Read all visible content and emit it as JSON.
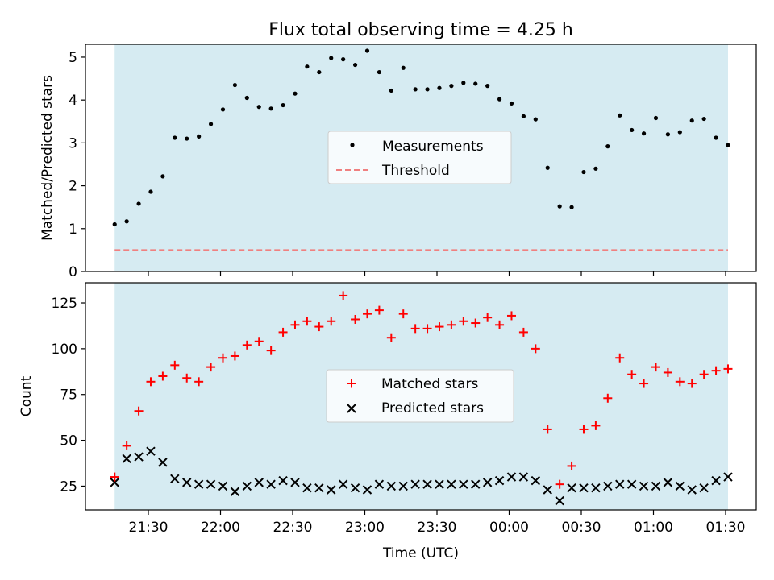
{
  "title": "Flux total observing time = 4.25 h",
  "xlabel": "Time (UTC)",
  "colors": {
    "band": "#add8e6",
    "measure": "#000000",
    "threshold": "#f08080",
    "matched": "#ff0000",
    "predicted": "#000000"
  },
  "chart_data": [
    {
      "type": "scatter",
      "ylabel": "Matched/Predicted stars",
      "ylim": [
        0,
        5.3
      ],
      "yticks": [
        0,
        1,
        2,
        3,
        4,
        5
      ],
      "threshold": 0.5,
      "legend": {
        "placement": "center",
        "entries": [
          "Measurements",
          "Threshold"
        ]
      },
      "series": [
        {
          "name": "Measurements",
          "x": [
            "21:16",
            "21:21",
            "21:26",
            "21:31",
            "21:36",
            "21:41",
            "21:46",
            "21:51",
            "21:56",
            "22:01",
            "22:06",
            "22:11",
            "22:16",
            "22:21",
            "22:26",
            "22:31",
            "22:36",
            "22:41",
            "22:46",
            "22:51",
            "22:56",
            "23:01",
            "23:06",
            "23:11",
            "23:16",
            "23:21",
            "23:26",
            "23:31",
            "23:36",
            "23:41",
            "23:46",
            "23:51",
            "23:56",
            "00:01",
            "00:06",
            "00:11",
            "00:16",
            "00:21",
            "00:26",
            "00:31",
            "00:36",
            "00:41",
            "00:46",
            "00:51",
            "00:56",
            "01:01",
            "01:06",
            "01:11",
            "01:16",
            "01:21",
            "01:26",
            "01:31"
          ],
          "values": [
            1.1,
            1.17,
            1.58,
            1.86,
            2.22,
            3.12,
            3.1,
            3.15,
            3.44,
            3.78,
            4.35,
            4.05,
            3.84,
            3.8,
            3.88,
            4.15,
            4.78,
            4.65,
            4.98,
            4.95,
            4.82,
            5.15,
            4.65,
            4.22,
            4.75,
            4.25,
            4.25,
            4.28,
            4.33,
            4.4,
            4.38,
            4.33,
            4.02,
            3.92,
            3.62,
            3.55,
            2.42,
            1.52,
            1.5,
            2.32,
            2.4,
            2.92,
            3.64,
            3.3,
            3.22,
            3.58,
            3.2,
            3.25,
            3.52,
            3.56,
            3.12,
            2.95
          ]
        },
        {
          "name": "Threshold",
          "values": [
            0.5
          ]
        }
      ]
    },
    {
      "type": "scatter",
      "ylabel": "Count",
      "ylim": [
        12,
        136
      ],
      "yticks": [
        25,
        50,
        75,
        100,
        125
      ],
      "legend": {
        "placement": "center",
        "entries": [
          "Matched stars",
          "Predicted stars"
        ]
      },
      "series": [
        {
          "name": "Matched stars",
          "x": [
            "21:16",
            "21:21",
            "21:26",
            "21:31",
            "21:36",
            "21:41",
            "21:46",
            "21:51",
            "21:56",
            "22:01",
            "22:06",
            "22:11",
            "22:16",
            "22:21",
            "22:26",
            "22:31",
            "22:36",
            "22:41",
            "22:46",
            "22:51",
            "22:56",
            "23:01",
            "23:06",
            "23:11",
            "23:16",
            "23:21",
            "23:26",
            "23:31",
            "23:36",
            "23:41",
            "23:46",
            "23:51",
            "23:56",
            "00:01",
            "00:06",
            "00:11",
            "00:16",
            "00:21",
            "00:26",
            "00:31",
            "00:36",
            "00:41",
            "00:46",
            "00:51",
            "00:56",
            "01:01",
            "01:06",
            "01:11",
            "01:16",
            "01:21",
            "01:26",
            "01:31"
          ],
          "values": [
            30,
            47,
            66,
            82,
            85,
            91,
            84,
            82,
            90,
            95,
            96,
            102,
            104,
            99,
            109,
            113,
            115,
            112,
            115,
            129,
            116,
            119,
            121,
            106,
            119,
            111,
            111,
            112,
            113,
            115,
            114,
            117,
            113,
            118,
            109,
            100,
            56,
            26,
            36,
            56,
            58,
            73,
            95,
            86,
            81,
            90,
            87,
            82,
            81,
            86,
            88,
            89
          ]
        },
        {
          "name": "Predicted stars",
          "x": [
            "21:16",
            "21:21",
            "21:26",
            "21:31",
            "21:36",
            "21:41",
            "21:46",
            "21:51",
            "21:56",
            "22:01",
            "22:06",
            "22:11",
            "22:16",
            "22:21",
            "22:26",
            "22:31",
            "22:36",
            "22:41",
            "22:46",
            "22:51",
            "22:56",
            "23:01",
            "23:06",
            "23:11",
            "23:16",
            "23:21",
            "23:26",
            "23:31",
            "23:36",
            "23:41",
            "23:46",
            "23:51",
            "23:56",
            "00:01",
            "00:06",
            "00:11",
            "00:16",
            "00:21",
            "00:26",
            "00:31",
            "00:36",
            "00:41",
            "00:46",
            "00:51",
            "00:56",
            "01:01",
            "01:06",
            "01:11",
            "01:16",
            "01:21",
            "01:26",
            "01:31"
          ],
          "values": [
            27,
            40,
            41,
            44,
            38,
            29,
            27,
            26,
            26,
            25,
            22,
            25,
            27,
            26,
            28,
            27,
            24,
            24,
            23,
            26,
            24,
            23,
            26,
            25,
            25,
            26,
            26,
            26,
            26,
            26,
            26,
            27,
            28,
            30,
            30,
            28,
            23,
            17,
            24,
            24,
            24,
            25,
            26,
            26,
            25,
            25,
            27,
            25,
            23,
            24,
            28,
            30
          ]
        }
      ]
    }
  ],
  "xticks": [
    "21:30",
    "22:00",
    "22:30",
    "23:00",
    "23:30",
    "00:00",
    "00:30",
    "01:00",
    "01:30"
  ]
}
